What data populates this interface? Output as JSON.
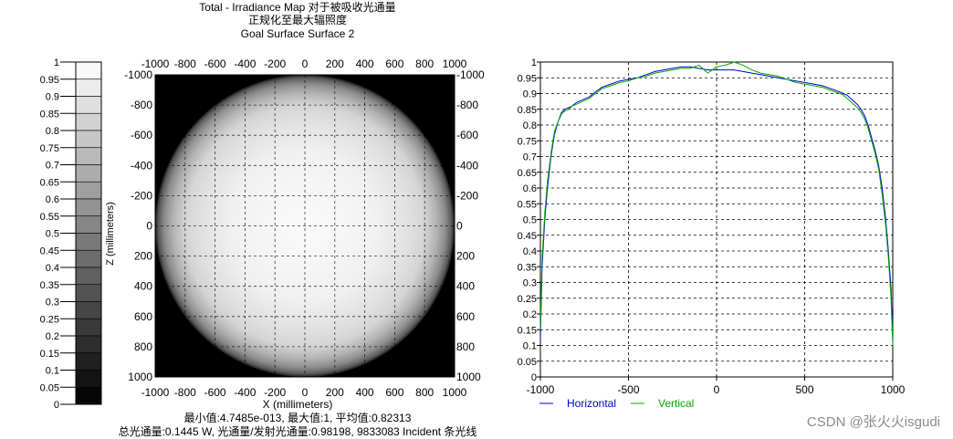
{
  "title": {
    "line1": "Total - Irradiance Map 对于被吸收光通量",
    "line2": "正规化至最大辐照度",
    "line3": "Goal Surface Surface 2"
  },
  "footer": {
    "line1": "最小值:4.7485e-013, 最大值:1, 平均值:0.82313",
    "line2": "总光通量:0.1445 W, 光通量/发射光通量:0.98198, 9833083 Incident 条光线"
  },
  "watermark": "CSDN @张火火isgudi",
  "colors": {
    "background": "#000000",
    "horizontal": "#0000cc",
    "vertical": "#00aa00",
    "legend_horizontal_text": "#0000cc",
    "legend_vertical_text": "#00aa00"
  },
  "chart_data": [
    {
      "type": "heatmap",
      "name": "colorbar",
      "ticks": [
        "1",
        "0.95",
        "0.9",
        "0.85",
        "0.8",
        "0.75",
        "0.7",
        "0.65",
        "0.6",
        "0.55",
        "0.5",
        "0.45",
        "0.4",
        "0.35",
        "0.3",
        "0.25",
        "0.2",
        "0.15",
        "0.1",
        "0.05",
        "0"
      ],
      "range": [
        0,
        1
      ],
      "levels": 20
    },
    {
      "type": "heatmap",
      "name": "irradiance-map",
      "xlabel": "X (millimeters)",
      "ylabel": "Z (millimeters)",
      "xlim": [
        -1000,
        1000
      ],
      "ylim": [
        -1000,
        1000
      ],
      "x_ticks": [
        "-1000",
        "-800",
        "-600",
        "-400",
        "-200",
        "0",
        "200",
        "400",
        "600",
        "800",
        "1000"
      ],
      "y_ticks": [
        "-1000",
        "-800",
        "-600",
        "-400",
        "-200",
        "0",
        "200",
        "400",
        "600",
        "800",
        "1000"
      ],
      "grid": true,
      "disk_radius": 1000,
      "radial_profile": [
        [
          0,
          0.98
        ],
        [
          300,
          0.96
        ],
        [
          500,
          0.94
        ],
        [
          700,
          0.88
        ],
        [
          800,
          0.83
        ],
        [
          880,
          0.7
        ],
        [
          940,
          0.55
        ],
        [
          980,
          0.35
        ],
        [
          1000,
          0.1
        ]
      ]
    },
    {
      "type": "line",
      "name": "cross-section",
      "xlim": [
        -1000,
        1000
      ],
      "ylim": [
        0,
        1
      ],
      "x_ticks": [
        "-1000",
        "-500",
        "0",
        "500",
        "1000"
      ],
      "y_ticks": [
        "1",
        "0.95",
        "0.9",
        "0.85",
        "0.8",
        "0.75",
        "0.7",
        "0.65",
        "0.6",
        "0.55",
        "0.5",
        "0.45",
        "0.4",
        "0.35",
        "0.3",
        "0.25",
        "0.2",
        "0.15",
        "0.1",
        "0.05",
        "0"
      ],
      "grid": true,
      "legend_position": "bottom-left",
      "series": [
        {
          "name": "Horizontal",
          "x": [
            -1000,
            -990,
            -975,
            -960,
            -940,
            -920,
            -900,
            -880,
            -860,
            -840,
            -820,
            -800,
            -780,
            -760,
            -740,
            -720,
            -700,
            -650,
            -600,
            -550,
            -500,
            -450,
            -400,
            -350,
            -300,
            -250,
            -200,
            -150,
            -100,
            -50,
            0,
            50,
            100,
            150,
            200,
            250,
            300,
            350,
            400,
            450,
            500,
            550,
            600,
            650,
            700,
            720,
            740,
            760,
            780,
            800,
            820,
            840,
            860,
            880,
            900,
            920,
            940,
            960,
            975,
            990,
            1000
          ],
          "values": [
            0.12,
            0.35,
            0.5,
            0.6,
            0.7,
            0.77,
            0.81,
            0.84,
            0.85,
            0.855,
            0.86,
            0.87,
            0.875,
            0.88,
            0.885,
            0.89,
            0.9,
            0.92,
            0.93,
            0.94,
            0.945,
            0.95,
            0.96,
            0.97,
            0.975,
            0.98,
            0.985,
            0.985,
            0.98,
            0.975,
            0.975,
            0.975,
            0.975,
            0.97,
            0.965,
            0.96,
            0.955,
            0.95,
            0.945,
            0.94,
            0.935,
            0.93,
            0.925,
            0.915,
            0.905,
            0.9,
            0.895,
            0.885,
            0.875,
            0.865,
            0.85,
            0.83,
            0.8,
            0.76,
            0.72,
            0.67,
            0.6,
            0.5,
            0.4,
            0.28,
            0.12
          ]
        },
        {
          "name": "Vertical",
          "x": [
            -1000,
            -990,
            -975,
            -960,
            -940,
            -920,
            -900,
            -880,
            -860,
            -840,
            -820,
            -800,
            -780,
            -760,
            -740,
            -720,
            -700,
            -650,
            -600,
            -550,
            -500,
            -450,
            -400,
            -350,
            -300,
            -250,
            -200,
            -150,
            -100,
            -50,
            0,
            50,
            100,
            150,
            200,
            250,
            300,
            350,
            400,
            450,
            500,
            550,
            600,
            650,
            700,
            720,
            740,
            760,
            780,
            800,
            820,
            840,
            860,
            880,
            900,
            920,
            940,
            960,
            975,
            990,
            1000
          ],
          "values": [
            0.15,
            0.38,
            0.52,
            0.62,
            0.71,
            0.78,
            0.81,
            0.835,
            0.845,
            0.85,
            0.86,
            0.865,
            0.87,
            0.875,
            0.88,
            0.885,
            0.895,
            0.915,
            0.925,
            0.935,
            0.94,
            0.95,
            0.955,
            0.965,
            0.97,
            0.975,
            0.98,
            0.98,
            0.99,
            0.965,
            0.985,
            0.99,
            1.0,
            0.99,
            0.975,
            0.965,
            0.96,
            0.955,
            0.945,
            0.935,
            0.93,
            0.925,
            0.92,
            0.91,
            0.9,
            0.895,
            0.885,
            0.875,
            0.865,
            0.855,
            0.84,
            0.82,
            0.79,
            0.75,
            0.71,
            0.66,
            0.58,
            0.48,
            0.38,
            0.25,
            0.1
          ]
        }
      ]
    }
  ]
}
